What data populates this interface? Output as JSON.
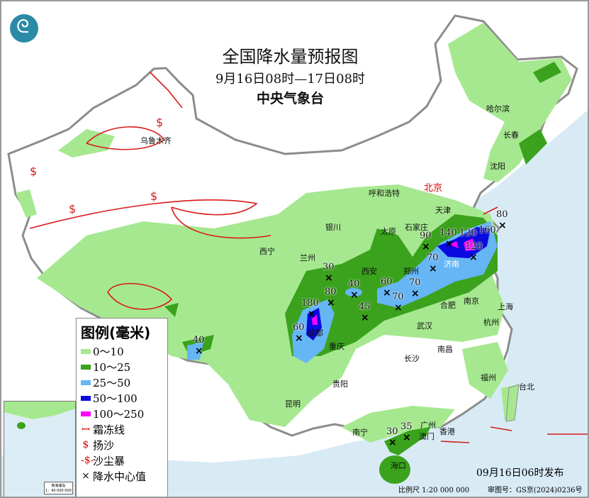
{
  "header": {
    "title": "全国降水量预报图",
    "period": "9月16日08时—17日08时",
    "issuer": "中央气象台",
    "logo": "cma-logo"
  },
  "colors": {
    "sea": "#d8ebf5",
    "rain_0_10": "#a6e890",
    "rain_10_25": "#3aa21c",
    "rain_25_50": "#66b5f5",
    "rain_50_100": "#0a0ae0",
    "rain_100_250": "#ff00ff",
    "frost_line": "#d81b1b"
  },
  "cities": [
    {
      "name": "乌鲁木齐"
    },
    {
      "name": "呼和浩特"
    },
    {
      "name": "北京",
      "capital": true
    },
    {
      "name": "天津"
    },
    {
      "name": "哈尔滨"
    },
    {
      "name": "长春"
    },
    {
      "name": "沈阳"
    },
    {
      "name": "银川"
    },
    {
      "name": "太原"
    },
    {
      "name": "石家庄"
    },
    {
      "name": "西宁"
    },
    {
      "name": "兰州"
    },
    {
      "name": "西安"
    },
    {
      "name": "郑州"
    },
    {
      "name": "济南"
    },
    {
      "name": "合肥"
    },
    {
      "name": "南京"
    },
    {
      "name": "上海"
    },
    {
      "name": "杭州"
    },
    {
      "name": "成都"
    },
    {
      "name": "重庆"
    },
    {
      "name": "武汉"
    },
    {
      "name": "长沙"
    },
    {
      "name": "南昌"
    },
    {
      "name": "贵阳"
    },
    {
      "name": "福州"
    },
    {
      "name": "台北"
    },
    {
      "name": "昆明"
    },
    {
      "name": "南宁"
    },
    {
      "name": "广州"
    },
    {
      "name": "澳门"
    },
    {
      "name": "香港"
    },
    {
      "name": "海口"
    }
  ],
  "rain_centers": [
    "80",
    "90",
    "70",
    "140",
    "120",
    "160",
    "120",
    "30",
    "40",
    "60",
    "70",
    "70",
    "80",
    "180",
    "45",
    "60",
    "40",
    "30",
    "35"
  ],
  "legend": {
    "title": "图例(毫米)",
    "items": [
      {
        "label": "0～10",
        "type": "fill"
      },
      {
        "label": "10～25",
        "type": "fill"
      },
      {
        "label": "25～50",
        "type": "fill"
      },
      {
        "label": "50～100",
        "type": "fill"
      },
      {
        "label": "100～250",
        "type": "fill"
      },
      {
        "label": "霜冻线",
        "type": "frost-line-icon"
      },
      {
        "label": "扬沙",
        "type": "blowing-sand-icon"
      },
      {
        "label": "沙尘暴",
        "type": "sandstorm-icon"
      },
      {
        "label": "降水中心值",
        "type": "cross-icon"
      }
    ]
  },
  "inset": {
    "title": "南海诸岛",
    "scale": "1：40 000 000"
  },
  "footer": {
    "issued": "09月16日06时发布",
    "scale": "比例尺 1:20 000 000",
    "map_no": "审图号：GS京(2024)0236号"
  }
}
